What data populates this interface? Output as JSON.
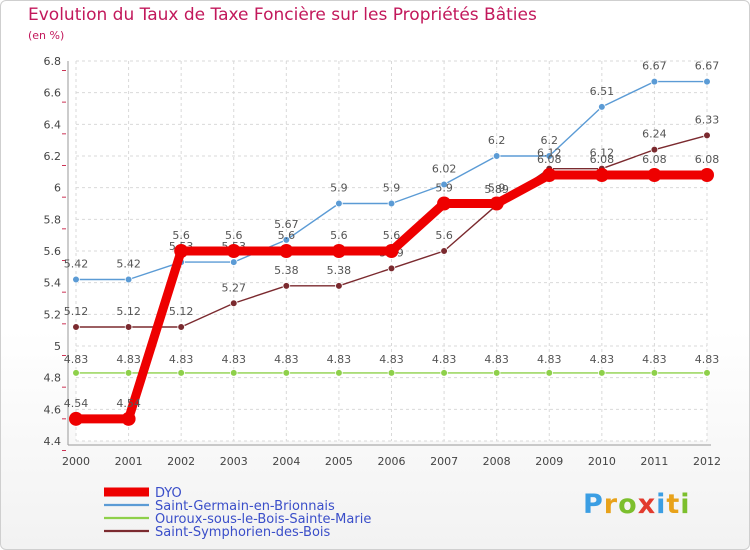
{
  "title": "Evolution du Taux de Taxe Foncière sur les Propriétés Bâties",
  "subtitle": "(en %)",
  "logo": {
    "letters": [
      "P",
      "r",
      "o",
      "x",
      "i",
      "t",
      "i"
    ],
    "colors": [
      "#3b9ee3",
      "#e8a21a",
      "#7cbf2d",
      "#e23b2e",
      "#3b9ee3",
      "#e8a21a",
      "#7cbf2d"
    ]
  },
  "chart_data": {
    "type": "line",
    "title": "Evolution du Taux de Taxe Foncière sur les Propriétés Bâties",
    "ylabel": "(en %)",
    "xlabel": "",
    "categories": [
      "2000",
      "2001",
      "2002",
      "2003",
      "2004",
      "2005",
      "2006",
      "2007",
      "2008",
      "2009",
      "2010",
      "2011",
      "2012"
    ],
    "ylim": [
      4.4,
      6.8
    ],
    "yticks": [
      4.4,
      4.6,
      4.8,
      5,
      5.2,
      5.4,
      5.6,
      5.8,
      6,
      6.2,
      6.4,
      6.6,
      6.8
    ],
    "ytick_labels": [
      "4.4",
      "4.6",
      "4.8",
      "5",
      "5.2",
      "5.4",
      "5.6",
      "5.8",
      "6",
      "6.2",
      "6.4",
      "6.6",
      "6.8"
    ],
    "series": [
      {
        "name": "Saint-Germain-en-Brionnais",
        "color": "#5b9bd5",
        "thickness": "thin",
        "values": [
          5.42,
          5.42,
          5.53,
          5.53,
          5.67,
          5.9,
          5.9,
          6.02,
          6.2,
          6.2,
          6.51,
          6.67,
          6.67
        ],
        "labels": [
          "5.42",
          "5.42",
          "5.53",
          "5.53",
          "5.67",
          "5.9",
          "5.9",
          "6.02",
          "6.2",
          "6.2",
          "6.51",
          "6.67",
          "6.67"
        ]
      },
      {
        "name": "Ouroux-sous-le-Bois-Sainte-Marie",
        "color": "#8ed04a",
        "thickness": "thin",
        "values": [
          4.83,
          4.83,
          4.83,
          4.83,
          4.83,
          4.83,
          4.83,
          4.83,
          4.83,
          4.83,
          4.83,
          4.83,
          4.83
        ],
        "labels": [
          "4.83",
          "4.83",
          "4.83",
          "4.83",
          "4.83",
          "4.83",
          "4.83",
          "4.83",
          "4.83",
          "4.83",
          "4.83",
          "4.83",
          "4.83"
        ]
      },
      {
        "name": "Saint-Symphorien-des-Bois",
        "color": "#7b2a2f",
        "thickness": "thin",
        "values": [
          5.12,
          5.12,
          5.12,
          5.27,
          5.38,
          5.38,
          5.49,
          5.6,
          5.89,
          6.12,
          6.12,
          6.24,
          6.33
        ],
        "labels": [
          "5.12",
          "5.12",
          "5.12",
          "5.27",
          "5.38",
          "5.38",
          "5.49",
          "5.6",
          "5.89",
          "6.12",
          "6.12",
          "6.24",
          "6.33"
        ]
      },
      {
        "name": "DYO",
        "color": "#ee0000",
        "thickness": "thick",
        "values": [
          4.54,
          4.54,
          5.6,
          5.6,
          5.6,
          5.6,
          5.6,
          5.9,
          5.9,
          6.08,
          6.08,
          6.08,
          6.08
        ],
        "labels": [
          "4.54",
          "4.54",
          "5.6",
          "5.6",
          "5.6",
          "5.6",
          "5.6",
          "5.9",
          "5.9",
          "6.08",
          "6.08",
          "6.08",
          "6.08"
        ]
      }
    ],
    "legend": [
      "DYO",
      "Saint-Germain-en-Brionnais",
      "Ouroux-sous-le-Bois-Sainte-Marie",
      "Saint-Symphorien-des-Bois"
    ],
    "legend_position": "bottom-left"
  }
}
